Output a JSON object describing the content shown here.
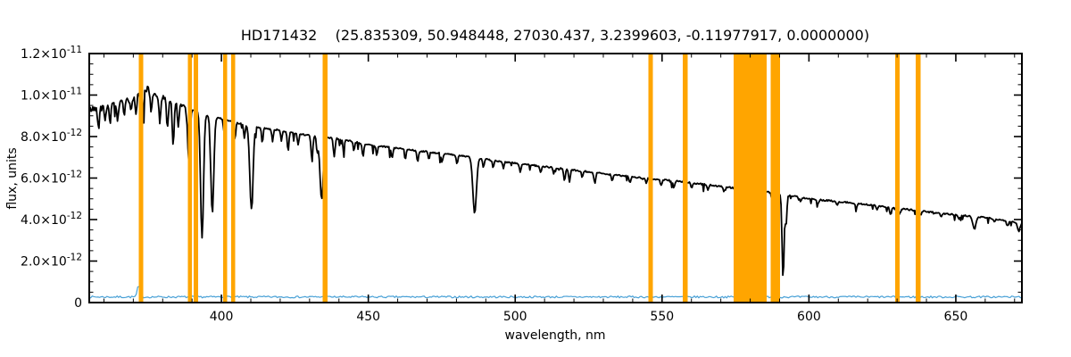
{
  "chart_data": {
    "type": "line",
    "title": "HD171432    (25.835309, 50.948448, 27030.437, 3.2399603, -0.11977917, 0.0000000)",
    "xlabel": "wavelength, nm",
    "ylabel": "flux, units",
    "xlim": [
      355,
      672.5
    ],
    "ylim": [
      0,
      1.2e-11
    ],
    "grid": false,
    "legend": "none",
    "x_ticks": {
      "major": [
        400,
        450,
        500,
        550,
        600,
        650
      ],
      "minor_step": 10
    },
    "y_ticks": {
      "minor_step": 5e-13,
      "labels": [
        {
          "value": 0,
          "label": "0"
        },
        {
          "value": 2e-12,
          "mantissa": "2.0×10",
          "exponent": "-12"
        },
        {
          "value": 4e-12,
          "mantissa": "4.0×10",
          "exponent": "-12"
        },
        {
          "value": 6e-12,
          "mantissa": "6.0×10",
          "exponent": "-12"
        },
        {
          "value": 8e-12,
          "mantissa": "8.0×10",
          "exponent": "-12"
        },
        {
          "value": 1e-11,
          "mantissa": "1.0×10",
          "exponent": "-11"
        },
        {
          "value": 1.2e-11,
          "mantissa": "1.2×10",
          "exponent": "-11"
        }
      ]
    },
    "masked_bands": {
      "color": "#FFA500",
      "regions_center_width_nm": [
        [
          372.6,
          1.6
        ],
        [
          389.2,
          1.4
        ],
        [
          391.3,
          1.4
        ],
        [
          401.3,
          1.4
        ],
        [
          404.0,
          1.4
        ],
        [
          435.3,
          1.6
        ],
        [
          546.1,
          1.6
        ],
        [
          557.9,
          1.6
        ],
        [
          580.0,
          11.2
        ],
        [
          588.6,
          3.2
        ],
        [
          630.1,
          1.6
        ],
        [
          637.2,
          1.6
        ]
      ]
    },
    "series": {
      "spectrum": {
        "name": "stellar spectrum",
        "color": "#000000",
        "line_width": 1.8,
        "sample_step_nm": 0.3,
        "seed": 42,
        "noise": {
          "base": 3.5e-14,
          "blue_below": 385,
          "blue_amp": 1.1e-13,
          "dip_probability": 0.05,
          "dip_max_fraction": 0.07
        },
        "continuum": [
          [
            355,
            9.3e-12
          ],
          [
            360,
            9.4e-12
          ],
          [
            365,
            9.55e-12
          ],
          [
            369,
            9.8e-12
          ],
          [
            372,
            1e-11
          ],
          [
            374.5,
            1.03e-11
          ],
          [
            377,
            1.005e-11
          ],
          [
            381,
            9.8e-12
          ],
          [
            386,
            9.55e-12
          ],
          [
            392,
            9.2e-12
          ],
          [
            400,
            8.85e-12
          ],
          [
            410,
            8.5e-12
          ],
          [
            420,
            8.3e-12
          ],
          [
            430,
            8.05e-12
          ],
          [
            440,
            7.9e-12
          ],
          [
            450,
            7.6e-12
          ],
          [
            465,
            7.35e-12
          ],
          [
            480,
            7.1e-12
          ],
          [
            495,
            6.8e-12
          ],
          [
            510,
            6.55e-12
          ],
          [
            525,
            6.3e-12
          ],
          [
            540,
            6.05e-12
          ],
          [
            555,
            5.85e-12
          ],
          [
            570,
            5.6e-12
          ],
          [
            585,
            5.35e-12
          ],
          [
            600,
            5e-12
          ],
          [
            615,
            4.8e-12
          ],
          [
            630,
            4.55e-12
          ],
          [
            645,
            4.3e-12
          ],
          [
            660,
            4.1e-12
          ],
          [
            672.5,
            3.8e-12
          ]
        ],
        "absorption_lines_center_depth_sigma": [
          [
            358.1,
            0.1,
            0.25
          ],
          [
            360.4,
            0.07,
            0.22
          ],
          [
            362.1,
            0.08,
            0.25
          ],
          [
            364.6,
            0.09,
            0.25
          ],
          [
            366.9,
            0.08,
            0.22
          ],
          [
            369.2,
            0.07,
            0.22
          ],
          [
            370.9,
            0.09,
            0.25
          ],
          [
            373.4,
            0.08,
            0.22
          ],
          [
            376.1,
            0.1,
            0.25
          ],
          [
            379.0,
            0.12,
            0.28
          ],
          [
            381.6,
            0.14,
            0.3
          ],
          [
            383.6,
            0.21,
            0.33
          ],
          [
            385.3,
            0.12,
            0.28
          ],
          [
            388.9,
            0.28,
            0.4
          ],
          [
            393.4,
            0.66,
            0.5
          ],
          [
            396.9,
            0.52,
            0.5
          ],
          [
            400.9,
            0.07,
            0.25
          ],
          [
            404.6,
            0.1,
            0.25
          ],
          [
            407.8,
            0.08,
            0.25
          ],
          [
            410.2,
            0.47,
            0.55
          ],
          [
            413.9,
            0.09,
            0.25
          ],
          [
            417.4,
            0.07,
            0.25
          ],
          [
            420.4,
            0.06,
            0.25
          ],
          [
            422.7,
            0.11,
            0.28
          ],
          [
            426.1,
            0.07,
            0.25
          ],
          [
            430.8,
            0.13,
            0.33
          ],
          [
            432.6,
            0.09,
            0.28
          ],
          [
            434.1,
            0.38,
            0.55
          ],
          [
            438.4,
            0.11,
            0.3
          ],
          [
            441.6,
            0.07,
            0.25
          ],
          [
            445.1,
            0.06,
            0.25
          ],
          [
            448.2,
            0.08,
            0.27
          ],
          [
            452.9,
            0.06,
            0.25
          ],
          [
            458.1,
            0.07,
            0.28
          ],
          [
            462.6,
            0.06,
            0.25
          ],
          [
            466.8,
            0.07,
            0.28
          ],
          [
            470.6,
            0.05,
            0.25
          ],
          [
            475.1,
            0.06,
            0.28
          ],
          [
            480.2,
            0.06,
            0.28
          ],
          [
            486.2,
            0.38,
            0.6
          ],
          [
            489.2,
            0.06,
            0.25
          ],
          [
            492.5,
            0.05,
            0.25
          ],
          [
            496.0,
            0.05,
            0.25
          ],
          [
            501.7,
            0.06,
            0.28
          ],
          [
            508.7,
            0.05,
            0.28
          ],
          [
            513.1,
            0.05,
            0.25
          ],
          [
            516.8,
            0.09,
            0.28
          ],
          [
            518.5,
            0.09,
            0.28
          ],
          [
            522.8,
            0.05,
            0.25
          ],
          [
            527.1,
            0.08,
            0.3
          ],
          [
            533.0,
            0.05,
            0.25
          ],
          [
            539.1,
            0.05,
            0.28
          ],
          [
            544.6,
            0.04,
            0.25
          ],
          [
            549.7,
            0.05,
            0.28
          ],
          [
            554.0,
            0.06,
            0.28
          ],
          [
            560.1,
            0.04,
            0.28
          ],
          [
            565.6,
            0.04,
            0.25
          ],
          [
            571.1,
            0.04,
            0.28
          ],
          [
            576.6,
            0.05,
            0.28
          ],
          [
            583.1,
            0.05,
            0.28
          ],
          [
            587.4,
            0.06,
            0.28
          ],
          [
            591.2,
            0.78,
            0.34
          ],
          [
            592.2,
            0.28,
            0.28
          ],
          [
            597.1,
            0.04,
            0.28
          ],
          [
            603.1,
            0.04,
            0.28
          ],
          [
            609.6,
            0.04,
            0.28
          ],
          [
            616.1,
            0.04,
            0.28
          ],
          [
            623.1,
            0.04,
            0.28
          ],
          [
            627.8,
            0.07,
            0.33
          ],
          [
            631.1,
            0.05,
            0.28
          ],
          [
            638.1,
            0.04,
            0.28
          ],
          [
            645.1,
            0.04,
            0.28
          ],
          [
            651.1,
            0.04,
            0.28
          ],
          [
            656.3,
            0.15,
            0.5
          ],
          [
            663.1,
            0.04,
            0.28
          ],
          [
            667.6,
            0.06,
            0.3
          ],
          [
            671.4,
            0.1,
            0.4
          ]
        ]
      },
      "error": {
        "name": "error spectrum",
        "color": "#47A0D6",
        "line_width": 1.2,
        "sample_step_nm": 0.5,
        "seed": 7,
        "level": 2.7e-13,
        "noise_amp": 4.5e-14,
        "spikes_center_height_sigma": [
          [
            371.8,
            5.5e-13,
            0.45
          ],
          [
            588.0,
            1.5e-13,
            0.5
          ]
        ]
      }
    }
  }
}
